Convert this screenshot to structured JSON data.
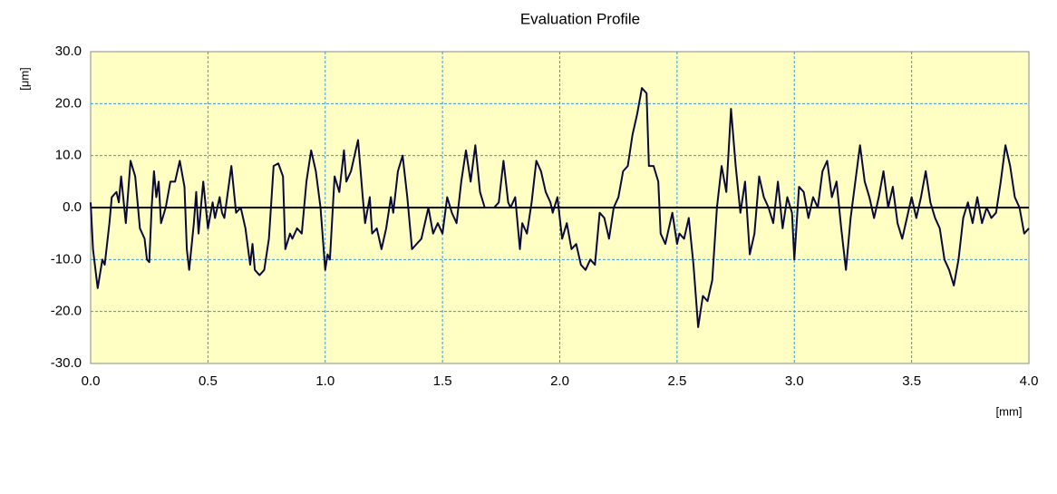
{
  "chart_data": {
    "type": "line",
    "title": "Evaluation Profile",
    "x_label": "[mm]",
    "y_label": "[μm]",
    "x": [
      0.0,
      0.01,
      0.03,
      0.05,
      0.06,
      0.08,
      0.09,
      0.11,
      0.12,
      0.13,
      0.15,
      0.17,
      0.19,
      0.21,
      0.23,
      0.24,
      0.25,
      0.26,
      0.27,
      0.28,
      0.29,
      0.3,
      0.32,
      0.34,
      0.36,
      0.38,
      0.4,
      0.41,
      0.42,
      0.44,
      0.45,
      0.46,
      0.48,
      0.5,
      0.52,
      0.53,
      0.55,
      0.56,
      0.57,
      0.6,
      0.62,
      0.64,
      0.66,
      0.68,
      0.69,
      0.7,
      0.72,
      0.74,
      0.76,
      0.78,
      0.8,
      0.82,
      0.83,
      0.85,
      0.86,
      0.88,
      0.9,
      0.92,
      0.94,
      0.96,
      0.98,
      1.0,
      1.01,
      1.02,
      1.04,
      1.06,
      1.08,
      1.09,
      1.11,
      1.13,
      1.14,
      1.16,
      1.17,
      1.19,
      1.2,
      1.22,
      1.24,
      1.26,
      1.28,
      1.29,
      1.31,
      1.33,
      1.35,
      1.37,
      1.39,
      1.41,
      1.43,
      1.44,
      1.46,
      1.48,
      1.5,
      1.52,
      1.54,
      1.56,
      1.58,
      1.6,
      1.62,
      1.64,
      1.66,
      1.68,
      1.7,
      1.72,
      1.74,
      1.76,
      1.78,
      1.79,
      1.81,
      1.83,
      1.84,
      1.86,
      1.88,
      1.9,
      1.92,
      1.94,
      1.96,
      1.97,
      1.99,
      2.01,
      2.03,
      2.05,
      2.07,
      2.09,
      2.11,
      2.13,
      2.15,
      2.17,
      2.19,
      2.21,
      2.23,
      2.25,
      2.27,
      2.29,
      2.31,
      2.33,
      2.35,
      2.37,
      2.38,
      2.4,
      2.42,
      2.43,
      2.45,
      2.46,
      2.48,
      2.5,
      2.51,
      2.53,
      2.55,
      2.57,
      2.59,
      2.61,
      2.63,
      2.65,
      2.67,
      2.69,
      2.71,
      2.73,
      2.75,
      2.77,
      2.79,
      2.81,
      2.83,
      2.85,
      2.87,
      2.89,
      2.91,
      2.93,
      2.95,
      2.97,
      2.99,
      3.0,
      3.02,
      3.04,
      3.06,
      3.08,
      3.1,
      3.12,
      3.14,
      3.16,
      3.18,
      3.2,
      3.22,
      3.24,
      3.26,
      3.28,
      3.3,
      3.32,
      3.34,
      3.36,
      3.38,
      3.4,
      3.42,
      3.44,
      3.46,
      3.48,
      3.5,
      3.52,
      3.54,
      3.56,
      3.58,
      3.6,
      3.62,
      3.64,
      3.66,
      3.68,
      3.7,
      3.72,
      3.74,
      3.76,
      3.78,
      3.8,
      3.82,
      3.84,
      3.86,
      3.88,
      3.9,
      3.92,
      3.94,
      3.96,
      3.98,
      4.0
    ],
    "values": [
      1,
      -8,
      -15.5,
      -10,
      -11,
      -3,
      2,
      3,
      1,
      6,
      -3,
      9,
      6,
      -4,
      -6,
      -10,
      -10.5,
      0,
      7,
      2,
      5,
      -3,
      0,
      5,
      5,
      9,
      4,
      -8,
      -12,
      -3,
      3,
      -5,
      5,
      -4,
      1,
      -2,
      2,
      -1,
      -2,
      8,
      -1,
      0,
      -4,
      -11,
      -7,
      -12,
      -13,
      -12,
      -6,
      8,
      8.5,
      6,
      -8,
      -5,
      -6,
      -4,
      -5,
      5,
      11,
      7,
      0,
      -12,
      -9,
      -10,
      6,
      3,
      11,
      5,
      7,
      11,
      13,
      2,
      -3,
      2,
      -5,
      -4,
      -8,
      -4,
      2,
      -1,
      7,
      10,
      2,
      -8,
      -7,
      -6,
      -2,
      0,
      -5,
      -3,
      -5,
      2,
      -1,
      -3,
      5,
      11,
      5,
      12,
      3,
      0,
      0,
      0,
      1,
      9,
      1,
      0,
      2,
      -8,
      -3,
      -5,
      1,
      9,
      7,
      3,
      1,
      -1,
      2,
      -6,
      -3,
      -8,
      -7,
      -11,
      -12,
      -10,
      -11,
      -1,
      -2,
      -6,
      0,
      2,
      7,
      8,
      14,
      18,
      23,
      22,
      8,
      8,
      5,
      -5,
      -7,
      -5,
      -1,
      -7,
      -5,
      -6,
      -2,
      -11,
      -23,
      -17,
      -18,
      -14,
      0,
      8,
      3,
      19,
      8,
      -1,
      5,
      -9,
      -5,
      6,
      2,
      0,
      -3,
      5,
      -4,
      2,
      -1,
      -10,
      4,
      3,
      -2,
      2,
      0,
      7,
      9,
      2,
      5,
      -4,
      -12,
      -2,
      5,
      12,
      5,
      2,
      -2,
      2,
      7,
      0,
      4,
      -3,
      -6,
      -2,
      2,
      -2,
      2,
      7,
      1,
      -2,
      -4,
      -10,
      -12,
      -15,
      -10,
      -2,
      1,
      -3,
      2,
      -3,
      0,
      -2,
      -1,
      5,
      12,
      8,
      2,
      0,
      -5,
      -4
    ],
    "color": "#0a0a3a",
    "xlim": [
      0,
      4
    ],
    "ylim": [
      -30,
      30
    ],
    "xticks": [
      {
        "value": 0,
        "label": "0.0"
      },
      0.5,
      {
        "value": 1,
        "label": "1.0"
      },
      1.5,
      {
        "value": 2,
        "label": "2.0"
      },
      2.5,
      {
        "value": 3,
        "label": "3.0"
      },
      3.5,
      {
        "value": 4,
        "label": "4.0"
      }
    ],
    "yticks": [
      {
        "value": -30,
        "label": "-30.0"
      },
      {
        "value": -20,
        "label": "-20.0"
      },
      {
        "value": -10,
        "label": "-10.0"
      },
      {
        "value": 0,
        "label": "0.0"
      },
      {
        "value": 10,
        "label": "10.0"
      },
      {
        "value": 20,
        "label": "20.0"
      },
      {
        "value": 30,
        "label": "30.0"
      }
    ],
    "grid": true,
    "zero_line": true
  }
}
